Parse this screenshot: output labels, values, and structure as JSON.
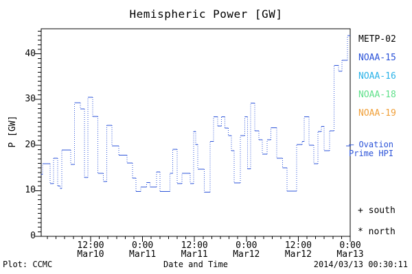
{
  "footer": {
    "left": "Plot: CCMC",
    "right": "2014/03/13 00:30:11"
  },
  "chart_data": {
    "type": "line",
    "style": "step-histogram; solid horizontal levels joined by dotted vertical connectors",
    "title": "Hemispheric Power [GW]",
    "xlabel": "Date and Time",
    "ylabel": "P [GW]",
    "ylim": [
      0,
      45.5
    ],
    "xlim_hours": [
      0.57,
      72
    ],
    "grid": false,
    "yticks": [
      0,
      10,
      20,
      30,
      40
    ],
    "y_minor_step": 1,
    "x_minor_step_hours": 2,
    "xticks": [
      {
        "t": 12,
        "time": "12:00",
        "date": "Mar10"
      },
      {
        "t": 24,
        "time": "0:00",
        "date": "Mar11"
      },
      {
        "t": 36,
        "time": "12:00",
        "date": "Mar11"
      },
      {
        "t": 48,
        "time": "0:00",
        "date": "Mar12"
      },
      {
        "t": 60,
        "time": "12:00",
        "date": "Mar12"
      },
      {
        "t": 72,
        "time": "0:00",
        "date": "Mar13"
      }
    ],
    "series": [
      {
        "name": "Ovation Prime HPI",
        "color": "#2a52d8",
        "t_end": 72,
        "steps": [
          [
            0.6,
            13.6
          ],
          [
            0.9,
            15.9
          ],
          [
            2.6,
            11.6
          ],
          [
            3.4,
            17.1
          ],
          [
            4.4,
            11.0
          ],
          [
            4.9,
            10.5
          ],
          [
            5.3,
            18.9
          ],
          [
            7.4,
            15.8
          ],
          [
            8.3,
            29.3
          ],
          [
            9.6,
            27.9
          ],
          [
            10.6,
            12.9
          ],
          [
            11.4,
            30.5
          ],
          [
            12.5,
            26.3
          ],
          [
            13.7,
            13.8
          ],
          [
            14.9,
            12.0
          ],
          [
            15.7,
            24.3
          ],
          [
            16.9,
            19.8
          ],
          [
            18.5,
            17.8
          ],
          [
            20.4,
            16.1
          ],
          [
            21.7,
            12.8
          ],
          [
            22.5,
            9.8
          ],
          [
            23.6,
            10.8
          ],
          [
            24.9,
            11.8
          ],
          [
            25.7,
            10.8
          ],
          [
            27.2,
            14.1
          ],
          [
            28.0,
            9.8
          ],
          [
            30.3,
            13.8
          ],
          [
            31.0,
            19.1
          ],
          [
            32.0,
            11.6
          ],
          [
            33.1,
            13.8
          ],
          [
            35.0,
            11.6
          ],
          [
            35.8,
            23.0
          ],
          [
            36.3,
            20.1
          ],
          [
            36.8,
            14.7
          ],
          [
            38.3,
            9.7
          ],
          [
            39.6,
            20.8
          ],
          [
            40.4,
            26.2
          ],
          [
            41.4,
            24.2
          ],
          [
            42.2,
            26.2
          ],
          [
            43.0,
            23.7
          ],
          [
            43.8,
            22.1
          ],
          [
            44.5,
            18.8
          ],
          [
            45.2,
            11.7
          ],
          [
            46.6,
            22.1
          ],
          [
            47.6,
            26.2
          ],
          [
            48.3,
            14.8
          ],
          [
            49.0,
            29.2
          ],
          [
            49.9,
            23.1
          ],
          [
            50.9,
            21.2
          ],
          [
            51.7,
            18.0
          ],
          [
            52.8,
            21.2
          ],
          [
            53.7,
            23.8
          ],
          [
            55.0,
            17.1
          ],
          [
            56.4,
            15.0
          ],
          [
            57.4,
            9.9
          ],
          [
            59.6,
            20.1
          ],
          [
            60.9,
            20.8
          ],
          [
            61.4,
            26.2
          ],
          [
            62.5,
            20.0
          ],
          [
            63.6,
            15.9
          ],
          [
            64.5,
            23.0
          ],
          [
            65.3,
            24.1
          ],
          [
            66.0,
            18.8
          ],
          [
            67.2,
            23.1
          ],
          [
            68.3,
            37.5
          ],
          [
            69.3,
            36.2
          ],
          [
            70.1,
            38.6
          ],
          [
            71.4,
            44.0
          ]
        ]
      }
    ],
    "legend": [
      {
        "label": "METP-02",
        "color": "#000000"
      },
      {
        "label": "NOAA-15",
        "color": "#2a52d8"
      },
      {
        "label": "NOAA-16",
        "color": "#29b2e8"
      },
      {
        "label": "NOAA-18",
        "color": "#5fe08a"
      },
      {
        "label": "NOAA-19",
        "color": "#f09f38"
      }
    ],
    "annotations": {
      "ovation_color": "#2a52d8",
      "ovation_line1": "– Ovation",
      "ovation_line2": "Prime HPI",
      "south": "+ south",
      "north": "* north"
    }
  }
}
